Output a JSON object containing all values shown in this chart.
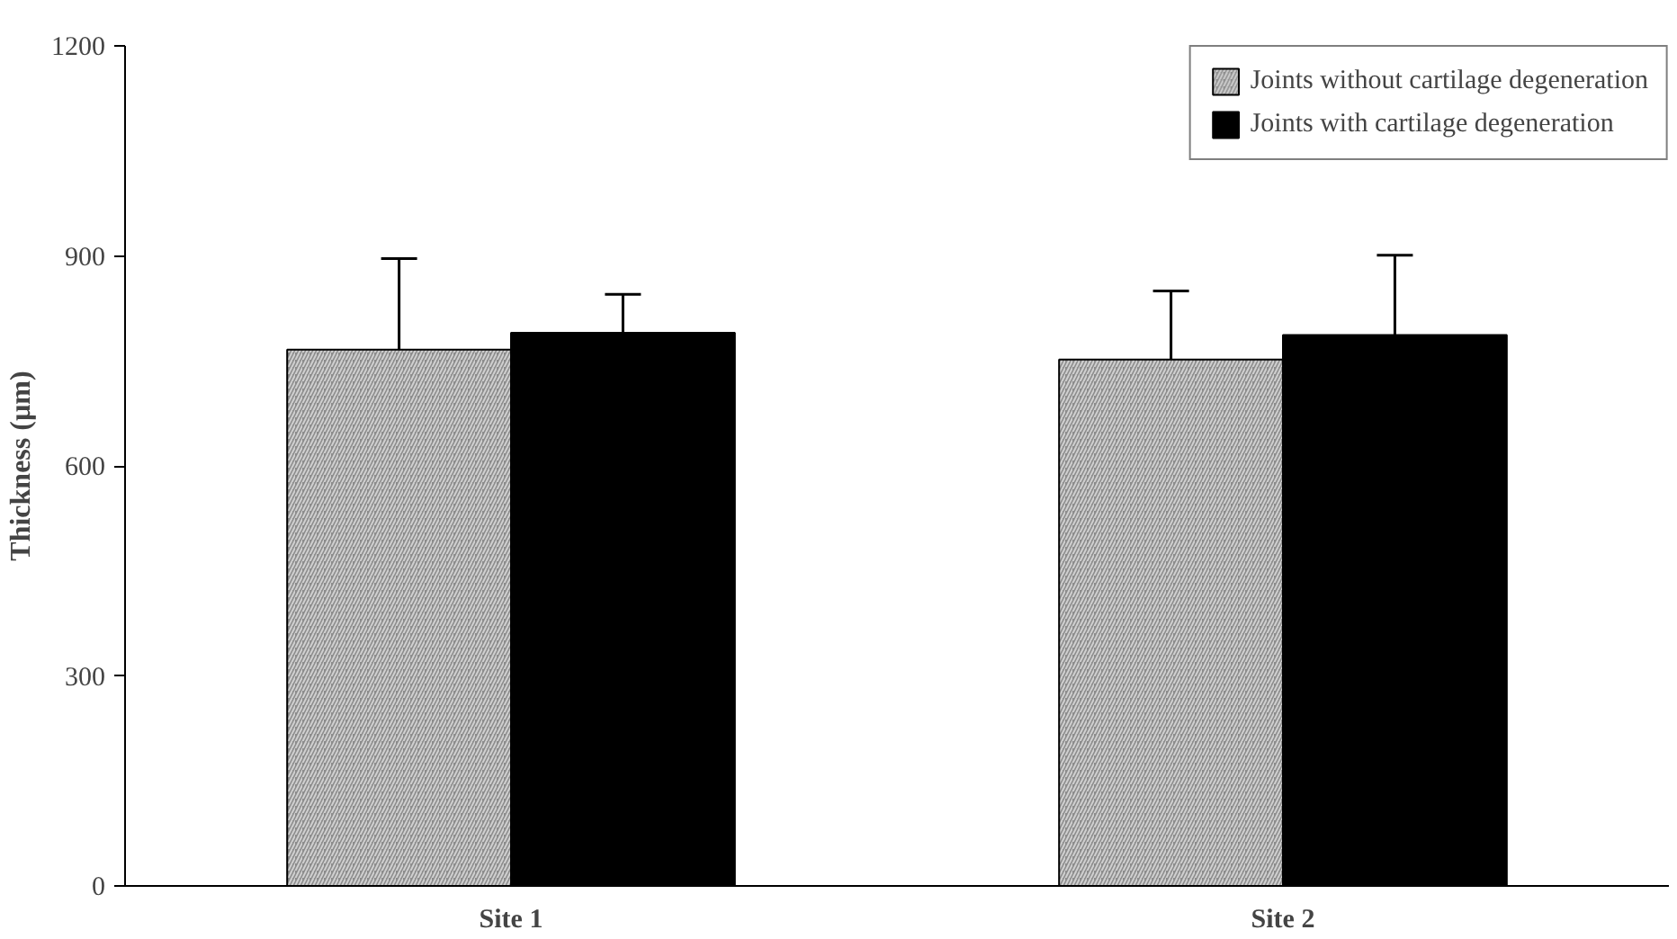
{
  "chart_data": {
    "type": "bar",
    "ylabel": "Thickness (µm)",
    "categories": [
      "Site 1",
      "Site 2"
    ],
    "series": [
      {
        "name": "Joints without cartilage degeneration",
        "color": "#8c8c8c",
        "values": [
          766,
          752
        ],
        "errors": [
          [
            766,
            896
          ],
          [
            752,
            850
          ]
        ]
      },
      {
        "name": "Joints with cartilage degeneration",
        "color": "#000000",
        "values": [
          790,
          787
        ],
        "errors": [
          [
            790,
            845
          ],
          [
            787,
            901
          ]
        ]
      }
    ],
    "ylim": [
      0,
      1200
    ],
    "yticks": [
      0,
      300,
      600,
      900,
      1200
    ],
    "grid": false,
    "legend": "top right"
  }
}
